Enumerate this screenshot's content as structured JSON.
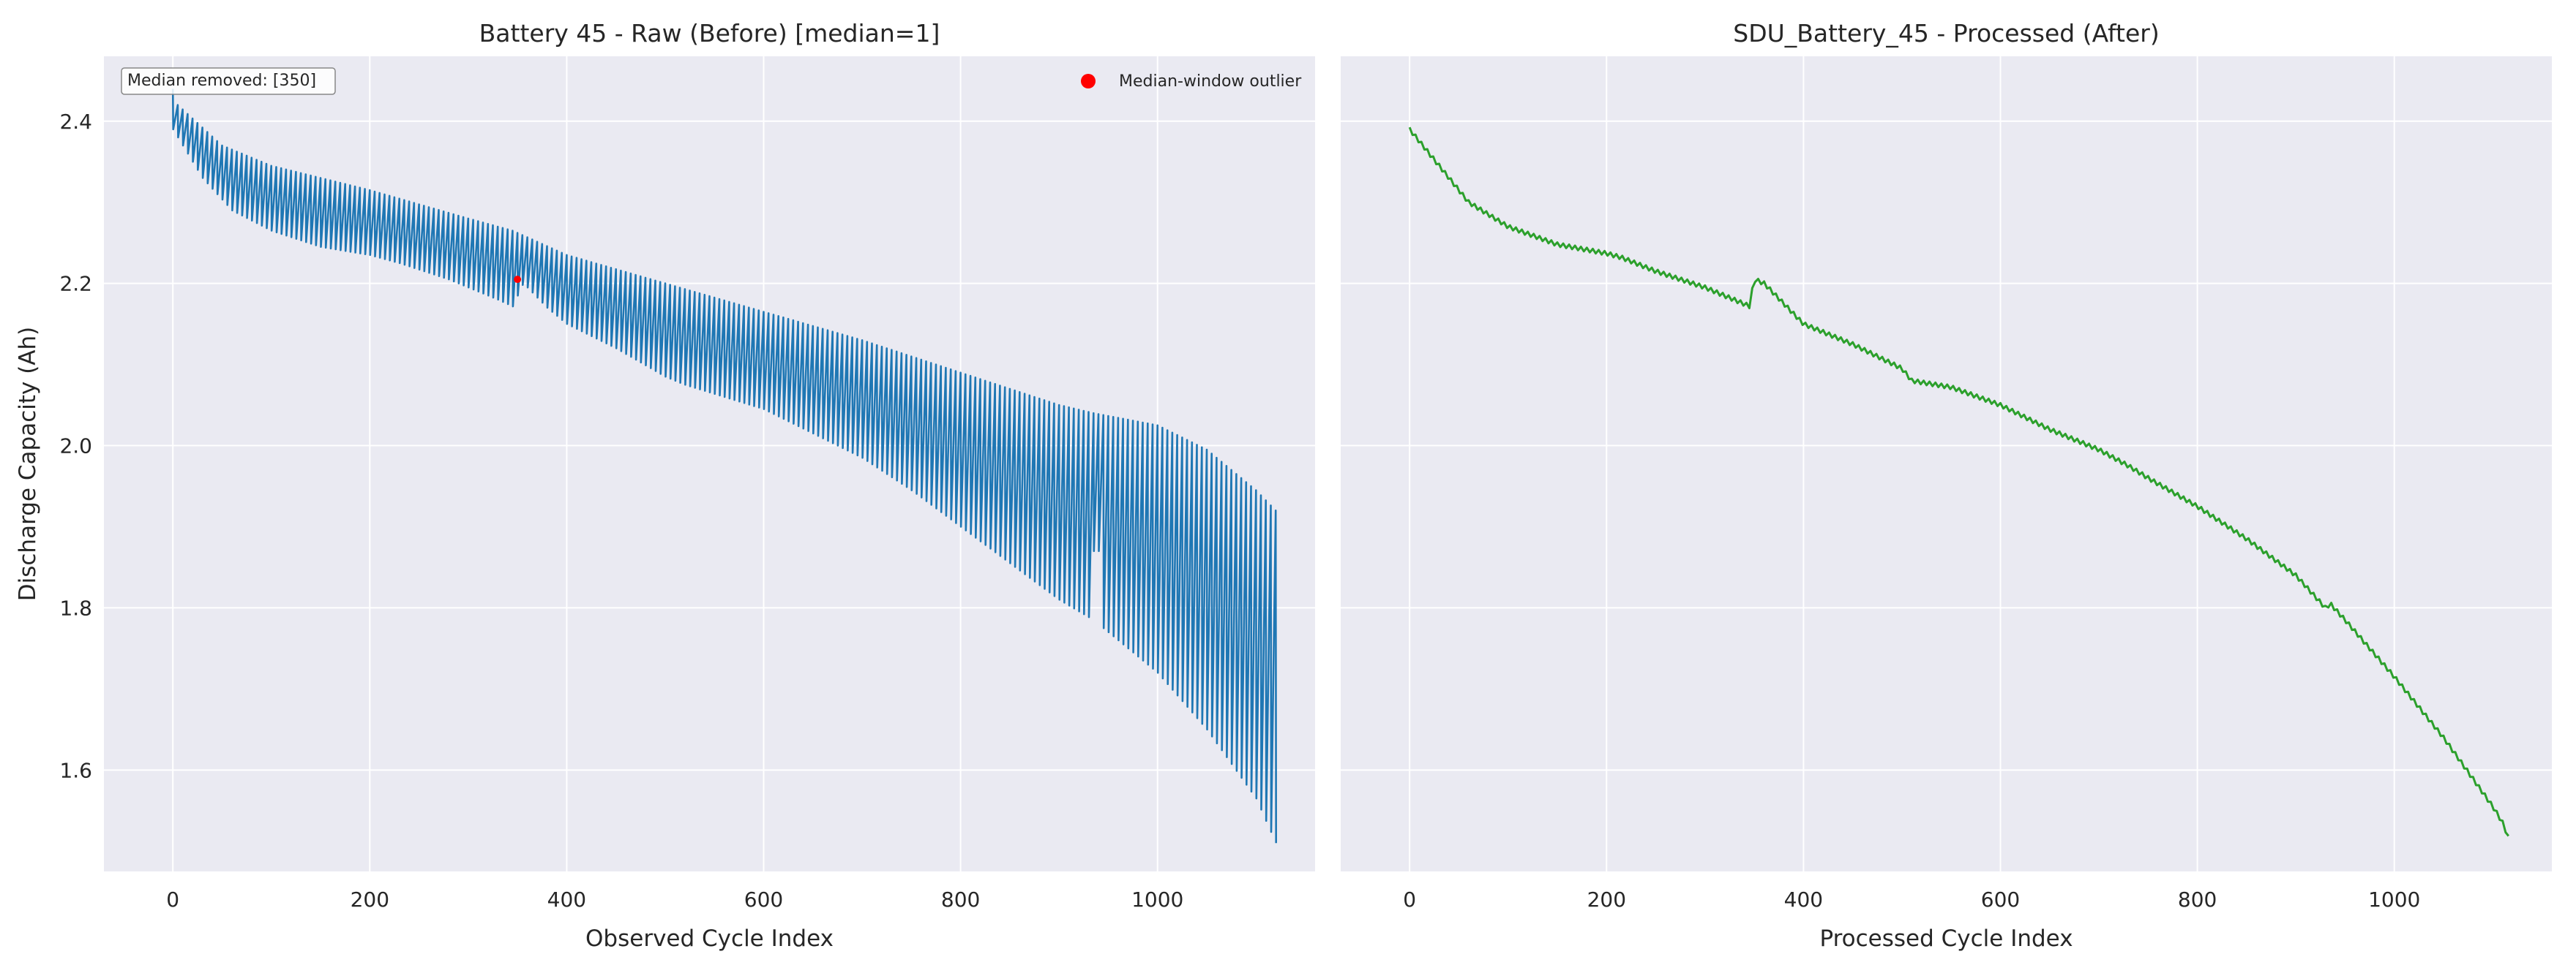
{
  "chart_data": [
    {
      "type": "line",
      "title": "Battery 45 - Raw (Before)  [median=1]",
      "xlabel": "Observed Cycle Index",
      "ylabel": "Discharge Capacity (Ah)",
      "xlim": [
        -70,
        1160
      ],
      "ylim": [
        1.475,
        2.48
      ],
      "xticks": [
        0,
        200,
        400,
        600,
        800,
        1000
      ],
      "yticks": [
        1.6,
        1.8,
        2.0,
        2.2,
        2.4
      ],
      "grid": true,
      "legend": {
        "position": "top-right",
        "entries": [
          {
            "label": "Median-window outlier",
            "color": "#ff0000",
            "marker": "circle"
          }
        ]
      },
      "annotation": "Median removed: [350]",
      "series": [
        {
          "color": "#1f77b4",
          "style": "oscillating between upper and lower envelope",
          "upper_envelope": [
            [
              0,
              2.44
            ],
            [
              5,
              2.42
            ],
            [
              50,
              2.37
            ],
            [
              100,
              2.345
            ],
            [
              200,
              2.315
            ],
            [
              300,
              2.28
            ],
            [
              345,
              2.265
            ],
            [
              400,
              2.235
            ],
            [
              500,
              2.2
            ],
            [
              600,
              2.165
            ],
            [
              700,
              2.13
            ],
            [
              800,
              2.09
            ],
            [
              900,
              2.05
            ],
            [
              935,
              2.04
            ],
            [
              1000,
              2.025
            ],
            [
              1050,
              1.995
            ],
            [
              1100,
              1.945
            ],
            [
              1120,
              1.92
            ]
          ],
          "lower_envelope": [
            [
              0,
              2.39
            ],
            [
              5,
              2.38
            ],
            [
              30,
              2.33
            ],
            [
              60,
              2.29
            ],
            [
              100,
              2.265
            ],
            [
              150,
              2.245
            ],
            [
              200,
              2.235
            ],
            [
              230,
              2.225
            ],
            [
              280,
              2.205
            ],
            [
              330,
              2.18
            ],
            [
              348,
              2.17
            ],
            [
              352,
              2.2
            ],
            [
              360,
              2.195
            ],
            [
              380,
              2.17
            ],
            [
              400,
              2.15
            ],
            [
              450,
              2.12
            ],
            [
              500,
              2.085
            ],
            [
              520,
              2.075
            ],
            [
              600,
              2.045
            ],
            [
              700,
              1.985
            ],
            [
              750,
              1.945
            ],
            [
              800,
              1.9
            ],
            [
              850,
              1.855
            ],
            [
              900,
              1.81
            ],
            [
              935,
              1.785
            ],
            [
              950,
              1.77
            ],
            [
              1000,
              1.72
            ],
            [
              1050,
              1.65
            ],
            [
              1100,
              1.565
            ],
            [
              1120,
              1.51
            ]
          ]
        },
        {
          "type": "scatter",
          "name": "Median-window outlier",
          "color": "#ff0000",
          "points": [
            [
              350,
              2.205
            ]
          ]
        }
      ]
    },
    {
      "type": "line",
      "title": "SDU_Battery_45 - Processed (After)",
      "xlabel": "Processed Cycle Index",
      "ylabel": "",
      "xlim": [
        -70,
        1160
      ],
      "ylim": [
        1.475,
        2.48
      ],
      "xticks": [
        0,
        200,
        400,
        600,
        800,
        1000
      ],
      "yticks": [
        1.6,
        1.8,
        2.0,
        2.2,
        2.4
      ],
      "grid": true,
      "series": [
        {
          "color": "#2ca02c",
          "points": [
            [
              0,
              2.39
            ],
            [
              10,
              2.375
            ],
            [
              30,
              2.345
            ],
            [
              60,
              2.3
            ],
            [
              100,
              2.27
            ],
            [
              150,
              2.248
            ],
            [
              200,
              2.237
            ],
            [
              215,
              2.232
            ],
            [
              250,
              2.215
            ],
            [
              300,
              2.195
            ],
            [
              345,
              2.172
            ],
            [
              350,
              2.205
            ],
            [
              360,
              2.2
            ],
            [
              380,
              2.175
            ],
            [
              400,
              2.15
            ],
            [
              450,
              2.125
            ],
            [
              500,
              2.095
            ],
            [
              510,
              2.08
            ],
            [
              550,
              2.072
            ],
            [
              600,
              2.05
            ],
            [
              650,
              2.02
            ],
            [
              700,
              1.995
            ],
            [
              730,
              1.975
            ],
            [
              750,
              1.96
            ],
            [
              800,
              1.925
            ],
            [
              850,
              1.885
            ],
            [
              900,
              1.84
            ],
            [
              930,
              1.8
            ],
            [
              935,
              1.805
            ],
            [
              950,
              1.785
            ],
            [
              1000,
              1.715
            ],
            [
              1050,
              1.64
            ],
            [
              1100,
              1.555
            ],
            [
              1110,
              1.535
            ],
            [
              1118,
              1.51
            ]
          ]
        }
      ]
    }
  ]
}
